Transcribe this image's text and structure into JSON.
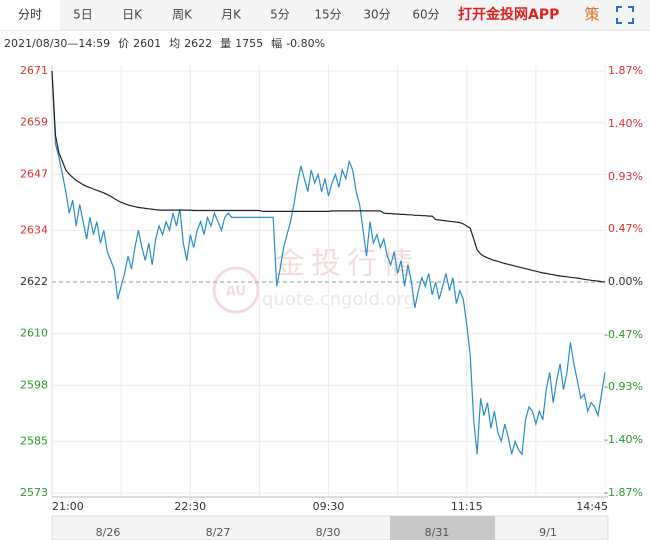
{
  "tabs": [
    "分时",
    "5日",
    "日K",
    "周K",
    "月K",
    "5分",
    "15分",
    "30分",
    "60分"
  ],
  "app_link": "打开金投网APP",
  "strategy_icon": "策",
  "info": {
    "datetime": "2021/08/30—14:59",
    "items": [
      {
        "label": "价",
        "value": "2601"
      },
      {
        "label": "均",
        "value": "2622"
      },
      {
        "label": "量",
        "value": "1755"
      },
      {
        "label": "幅",
        "value": "-0.80%"
      }
    ]
  },
  "watermark": {
    "title": "金投行情",
    "badge": "AU",
    "url": "quote.cngold.org"
  },
  "navigator": {
    "dates": [
      "8/26",
      "8/27",
      "8/30",
      "8/31",
      "9/1"
    ]
  },
  "chart_data": {
    "type": "line",
    "xlim": [
      0,
      160
    ],
    "xticks": [
      0,
      20,
      40,
      60,
      80,
      100,
      120,
      140,
      160
    ],
    "xtick_labels": [
      "21:00",
      null,
      "22:30",
      null,
      "09:30",
      null,
      "11:15",
      null,
      "14:45"
    ],
    "ylim": [
      2573,
      2671
    ],
    "yticks": [
      2671,
      2659,
      2647,
      2634,
      2622,
      2610,
      2598,
      2585,
      2573
    ],
    "y2lim": [
      -1.87,
      1.87
    ],
    "y2ticks": [
      {
        "value": 1.87,
        "label": "1.87%"
      },
      {
        "value": 1.4,
        "label": "1.40%"
      },
      {
        "value": 0.93,
        "label": "0.93%"
      },
      {
        "value": 0.47,
        "label": "0.47%"
      },
      {
        "value": 0,
        "label": "0.00%"
      },
      {
        "value": -0.47,
        "label": "-0.47%"
      },
      {
        "value": -0.93,
        "label": "-0.93%"
      },
      {
        "value": -1.4,
        "label": "-1.40%"
      },
      {
        "value": -1.87,
        "label": "-1.87%"
      }
    ],
    "grid": true,
    "up_color": "#e03030",
    "down_color": "#2a9a2a",
    "flat_color": "#333333",
    "series": [
      {
        "color": "#2a8cc8",
        "values": [
          2671,
          2654,
          2651,
          2647,
          2643,
          2638,
          2641,
          2635,
          2640,
          2636,
          2632,
          2637,
          2633,
          2636,
          2631,
          2634,
          2629,
          2627,
          2625,
          2618,
          2621,
          2624,
          2628,
          2625,
          2630,
          2634,
          2630,
          2627,
          2631,
          2626,
          2632,
          2635,
          2633,
          2636,
          2634,
          2638,
          2635,
          2639,
          2631,
          2627,
          2633,
          2630,
          2634,
          2636,
          2633,
          2637,
          2635,
          2638,
          2636,
          2634,
          2637,
          2638,
          2637,
          2637,
          2637,
          2637,
          2637,
          2637,
          2637,
          2637,
          2637,
          2637,
          2637,
          2637,
          2637,
          2621,
          2625,
          2630,
          2633,
          2636,
          2640,
          2645,
          2649,
          2646,
          2643,
          2648,
          2645,
          2647,
          2643,
          2646,
          2642,
          2645,
          2647,
          2644,
          2648,
          2646,
          2650,
          2648,
          2643,
          2640,
          2634,
          2628,
          2636,
          2631,
          2633,
          2630,
          2632,
          2628,
          2626,
          2629,
          2624,
          2627,
          2621,
          2626,
          2622,
          2616,
          2620,
          2623,
          2621,
          2624,
          2619,
          2622,
          2618,
          2621,
          2624,
          2620,
          2623,
          2617,
          2620,
          2618,
          2612,
          2605,
          2590,
          2582,
          2595,
          2591,
          2594,
          2588,
          2592,
          2587,
          2585,
          2589,
          2586,
          2582,
          2585,
          2583,
          2582,
          2590,
          2593,
          2592,
          2589,
          2592,
          2590,
          2597,
          2601,
          2594,
          2599,
          2603,
          2597,
          2601,
          2608,
          2603,
          2599,
          2595,
          2596,
          2592,
          2594,
          2593,
          2591,
          2596,
          2601
        ]
      },
      {
        "color": "#222222",
        "values": [
          2671,
          2656,
          2652,
          2650,
          2648,
          2647,
          2646.3,
          2645.6,
          2645.1,
          2644.6,
          2644.2,
          2643.9,
          2643.6,
          2643.3,
          2643,
          2642.7,
          2642.3,
          2641.9,
          2641.4,
          2640.9,
          2640.5,
          2640.2,
          2639.9,
          2639.7,
          2639.5,
          2639.3,
          2639.2,
          2639.1,
          2639,
          2638.9,
          2638.8,
          2638.7,
          2638.7,
          2638.7,
          2638.7,
          2638.7,
          2638.7,
          2638.7,
          2638.7,
          2638.7,
          2638.7,
          2638.6,
          2638.6,
          2638.6,
          2638.6,
          2638.6,
          2638.6,
          2638.6,
          2638.6,
          2638.6,
          2638.6,
          2638.6,
          2638.6,
          2638.6,
          2638.6,
          2638.6,
          2638.6,
          2638.6,
          2638.6,
          2638.6,
          2638.6,
          2638.4,
          2638.4,
          2638.4,
          2638.4,
          2638.4,
          2638.4,
          2638.4,
          2638.4,
          2638.4,
          2638.4,
          2638.4,
          2638.4,
          2638.4,
          2638.4,
          2638.4,
          2638.4,
          2638.4,
          2638.4,
          2638.4,
          2638.4,
          2638.5,
          2638.5,
          2638.5,
          2638.5,
          2638.5,
          2638.5,
          2638.5,
          2638.5,
          2638.5,
          2638.5,
          2638.5,
          2638.5,
          2638.5,
          2638.5,
          2638.5,
          2638,
          2637.9,
          2637.9,
          2637.8,
          2637.8,
          2637.7,
          2637.7,
          2637.6,
          2637.6,
          2637.5,
          2637.5,
          2637.4,
          2637.4,
          2637.3,
          2637.3,
          2636.5,
          2636.4,
          2636.3,
          2636.2,
          2636.1,
          2636,
          2635.9,
          2635.8,
          2635.5,
          2635,
          2634.5,
          2632,
          2629.5,
          2628.5,
          2628,
          2627.6,
          2627.3,
          2627,
          2626.8,
          2626.5,
          2626.3,
          2626.1,
          2625.9,
          2625.7,
          2625.5,
          2625.3,
          2625.1,
          2624.9,
          2624.7,
          2624.5,
          2624.3,
          2624.1,
          2624,
          2623.8,
          2623.7,
          2623.5,
          2623.4,
          2623.3,
          2623.2,
          2623.1,
          2623,
          2622.9,
          2622.8,
          2622.6,
          2622.5,
          2622.4,
          2622.3,
          2622.2,
          2622.1,
          2622
        ]
      }
    ]
  }
}
